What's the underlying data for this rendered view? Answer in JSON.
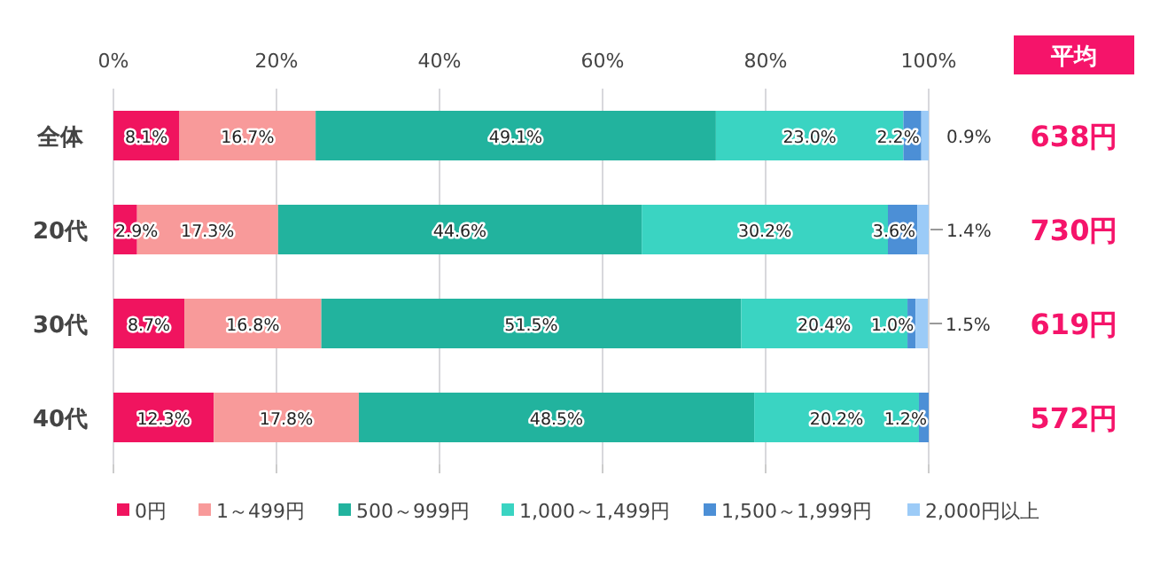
{
  "chart_data": {
    "type": "bar",
    "orientation": "horizontal",
    "stacked": true,
    "categories": [
      "全体",
      "20代",
      "30代",
      "40代"
    ],
    "series": [
      {
        "name": "0円",
        "color": "#f0145f",
        "values": [
          8.1,
          2.9,
          8.7,
          12.3
        ],
        "value_labels": [
          "8.1%",
          "2.9%",
          "8.7%",
          "12.3%"
        ]
      },
      {
        "name": "1～499円",
        "color": "#f89a9a",
        "values": [
          16.7,
          17.3,
          16.8,
          17.8
        ],
        "value_labels": [
          "16.7%",
          "17.3%",
          "16.8%",
          "17.8%"
        ]
      },
      {
        "name": "500～999円",
        "color": "#22b39e",
        "values": [
          49.1,
          44.6,
          51.5,
          48.5
        ],
        "value_labels": [
          "49.1%",
          "44.6%",
          "51.5%",
          "48.5%"
        ]
      },
      {
        "name": "1,000～1,499円",
        "color": "#3ad4c2",
        "values": [
          23.0,
          30.2,
          20.4,
          20.2
        ],
        "value_labels": [
          "23.0%",
          "30.2%",
          "20.4%",
          "20.2%"
        ]
      },
      {
        "name": "1,500～1,999円",
        "color": "#4c8fd6",
        "values": [
          2.2,
          3.6,
          1.0,
          1.2
        ],
        "value_labels": [
          "2.2%",
          "3.6%",
          "1.0%",
          "1.2%"
        ]
      },
      {
        "name": "2,000円以上",
        "color": "#9ccbf7",
        "values": [
          0.9,
          1.4,
          1.5,
          null
        ],
        "value_labels": [
          "0.9%",
          "1.4%",
          "1.5%",
          null
        ]
      }
    ],
    "xlim": [
      0,
      100
    ],
    "xticks": [
      {
        "value": 0,
        "label": "0%"
      },
      {
        "value": 20,
        "label": "20%"
      },
      {
        "value": 40,
        "label": "40%"
      },
      {
        "value": 60,
        "label": "60%"
      },
      {
        "value": 80,
        "label": "80%"
      },
      {
        "value": 100,
        "label": "100%"
      }
    ],
    "grid": "x",
    "legend": "bottom",
    "annotations": [
      "平均",
      "638円",
      "730円",
      "619円",
      "572円"
    ]
  }
}
